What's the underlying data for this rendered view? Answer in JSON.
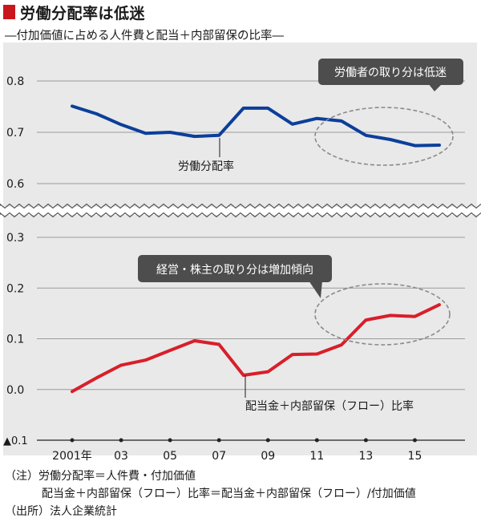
{
  "title": "労働分配率は低迷",
  "subtitle": "―付加価値に占める人件費と配当＋内部留保の比率―",
  "chart_data": {
    "type": "line",
    "x": [
      2001,
      2002,
      2003,
      2004,
      2005,
      2006,
      2007,
      2008,
      2009,
      2010,
      2011,
      2012,
      2013,
      2014,
      2015,
      2016
    ],
    "xtick_values": [
      2001,
      2003,
      2005,
      2007,
      2009,
      2011,
      2013,
      2015
    ],
    "xtick_labels": [
      "2001年",
      "03",
      "05",
      "07",
      "09",
      "11",
      "13",
      "15"
    ],
    "series": [
      {
        "name": "労働分配率",
        "color": "#0b3f9a",
        "values": [
          0.751,
          0.736,
          0.715,
          0.698,
          0.7,
          0.692,
          0.694,
          0.747,
          0.747,
          0.716,
          0.727,
          0.722,
          0.694,
          0.686,
          0.674,
          0.675
        ]
      },
      {
        "name": "配当金＋内部留保（フロー）比率",
        "color": "#d81f2a",
        "values": [
          -0.004,
          0.023,
          0.048,
          0.058,
          0.077,
          0.096,
          0.089,
          0.028,
          0.035,
          0.069,
          0.07,
          0.088,
          0.137,
          0.146,
          0.144,
          0.167
        ]
      }
    ],
    "upper_axis": {
      "ylim": [
        0.58,
        0.86
      ],
      "ticks": [
        "0.8",
        "0.7",
        "0.6"
      ],
      "tick_values": [
        0.8,
        0.7,
        0.6
      ]
    },
    "lower_axis": {
      "ylim": [
        -0.1,
        0.32
      ],
      "ticks": [
        "0.3",
        "0.2",
        "0.1",
        "0.0",
        "▲0.1"
      ],
      "tick_values": [
        0.3,
        0.2,
        0.1,
        0.0,
        -0.1
      ]
    },
    "grid": true,
    "annotations": [
      "労働者の取り分は低迷",
      "経営・株主の取り分は増加傾向"
    ]
  },
  "notes": [
    "（注）労働分配率＝人件費・付加価値",
    "配当金＋内部留保（フロー）比率＝配当金＋内部留保（フロー）/付加価値",
    "（出所）法人企業統計"
  ]
}
